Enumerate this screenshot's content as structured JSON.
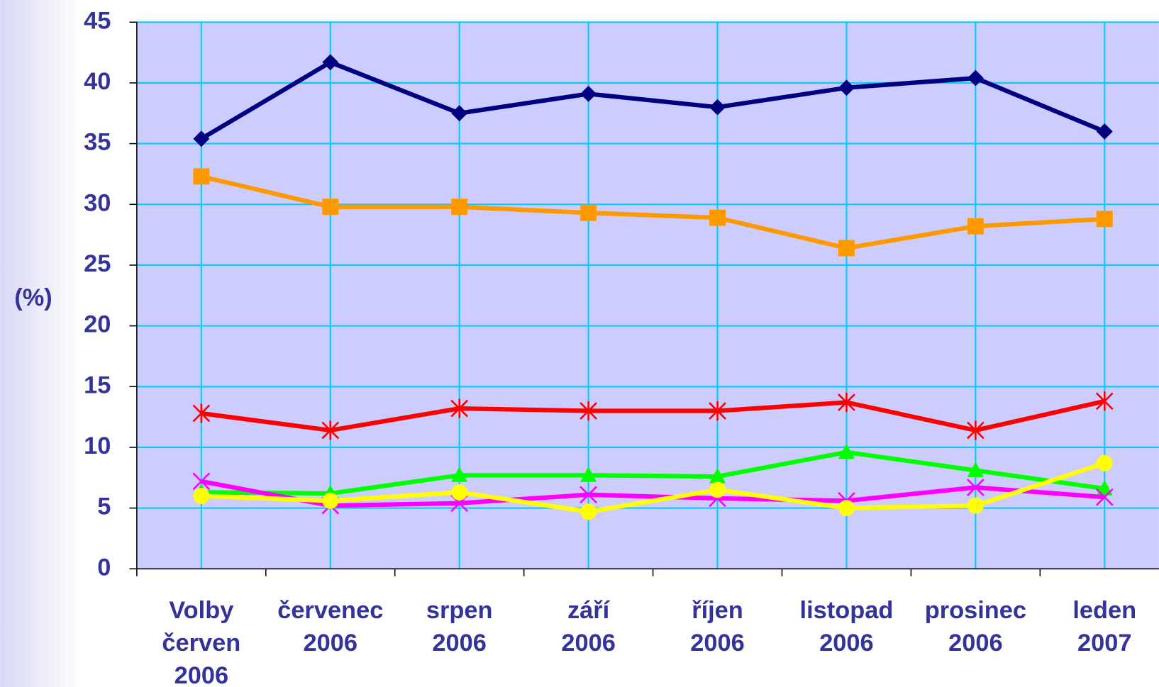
{
  "chart_data": {
    "type": "line",
    "y_label": "(%)",
    "categories": [
      "Volby\nčerven\n2006",
      "červenec\n2006",
      "srpen\n2006",
      "září\n2006",
      "říjen\n2006",
      "listopad\n2006",
      "prosinec\n2006",
      "leden\n2007"
    ],
    "series": [
      {
        "color": "#000080",
        "marker": "diamond",
        "values": [
          35.4,
          41.7,
          37.5,
          39.1,
          38.0,
          39.6,
          40.4,
          36.0
        ]
      },
      {
        "color": "#ff9900",
        "marker": "square",
        "values": [
          32.3,
          29.8,
          29.8,
          29.3,
          28.9,
          26.4,
          28.2,
          28.8
        ]
      },
      {
        "color": "#ff0000",
        "marker": "star",
        "values": [
          12.8,
          11.4,
          13.2,
          13.0,
          13.0,
          13.7,
          11.4,
          13.8
        ]
      },
      {
        "color": "#00ff00",
        "marker": "triangle",
        "values": [
          6.3,
          6.2,
          7.7,
          7.7,
          7.6,
          9.6,
          8.1,
          6.6
        ]
      },
      {
        "color": "#ff00ff",
        "marker": "x",
        "values": [
          7.2,
          5.2,
          5.4,
          6.1,
          5.8,
          5.6,
          6.7,
          5.9
        ]
      },
      {
        "color": "#ffff00",
        "marker": "circle",
        "values": [
          6.0,
          5.6,
          6.3,
          4.7,
          6.5,
          5.0,
          5.2,
          8.7
        ]
      }
    ],
    "ylim": [
      0,
      45
    ],
    "yticks": [
      0,
      5,
      10,
      15,
      20,
      25,
      30,
      35,
      40,
      45
    ],
    "grid": true
  }
}
